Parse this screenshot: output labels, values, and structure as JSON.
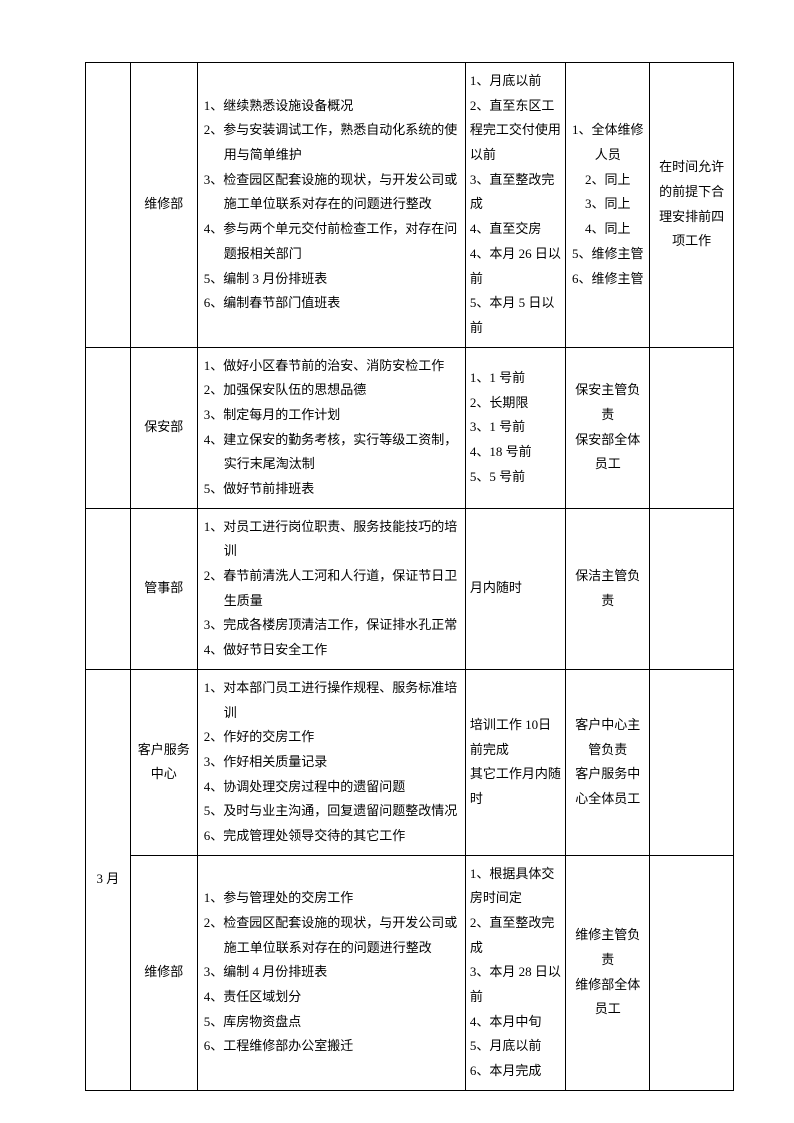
{
  "rows": [
    {
      "month": "",
      "dept": "维修部",
      "tasks": [
        {
          "n": "1、",
          "t": "继续熟悉设施设备概况"
        },
        {
          "n": "2、",
          "t": "参与安装调试工作，熟悉自动化系统的使用与简单维护"
        },
        {
          "n": "3、",
          "t": "检查园区配套设施的现状，与开发公司或施工单位联系对存在的问题进行整改"
        },
        {
          "n": "4、",
          "t": "参与两个单元交付前检查工作，对存在问题报相关部门"
        },
        {
          "n": "5、",
          "t": "编制 3 月份排班表"
        },
        {
          "n": "6、",
          "t": "编制春节部门值班表"
        }
      ],
      "deadline": "1、月底以前\n2、直至东区工程完工交付使用以前\n3、直至整改完成\n4、直至交房\n4、本月 26 日以前\n5、本月 5 日以前",
      "owner": "1、全体维修人员\n2、同上\n3、同上\n4、同上\n5、维修主管\n6、维修主管",
      "note": "在时间允许的前提下合理安排前四项工作"
    },
    {
      "month": "",
      "dept": "保安部",
      "tasks": [
        {
          "n": "1、",
          "t": "做好小区春节前的治安、消防安检工作"
        },
        {
          "n": "2、",
          "t": "加强保安队伍的思想品德"
        },
        {
          "n": "3、",
          "t": "制定每月的工作计划"
        },
        {
          "n": "4、",
          "t": "建立保安的勤务考核，实行等级工资制，实行末尾淘汰制"
        },
        {
          "n": "5、",
          "t": "做好节前排班表"
        }
      ],
      "deadline": "1、1 号前\n2、长期限\n3、1 号前\n4、18 号前\n5、5 号前",
      "owner": "保安主管负责\n保安部全体员工",
      "note": ""
    },
    {
      "month": "",
      "dept": "管事部",
      "tasks": [
        {
          "n": "1、",
          "t": "对员工进行岗位职责、服务技能技巧的培训"
        },
        {
          "n": "2、",
          "t": "春节前清洗人工河和人行道，保证节日卫生质量"
        },
        {
          "n": "3、",
          "t": "完成各楼房顶清洁工作，保证排水孔正常"
        },
        {
          "n": "4、",
          "t": "做好节日安全工作"
        }
      ],
      "deadline": "月内随时",
      "owner": "保洁主管负责",
      "note": ""
    },
    {
      "month": "3 月",
      "monthRowspan": 2,
      "dept": "客户服务中心",
      "tasks": [
        {
          "n": "1、",
          "t": "对本部门员工进行操作规程、服务标准培训"
        },
        {
          "n": "2、",
          "t": "作好的交房工作"
        },
        {
          "n": "3、",
          "t": "作好相关质量记录"
        },
        {
          "n": "4、",
          "t": "协调处理交房过程中的遗留问题"
        },
        {
          "n": "5、",
          "t": "及时与业主沟通，回复遗留问题整改情况"
        },
        {
          "n": "6、",
          "t": "完成管理处领导交待的其它工作"
        }
      ],
      "deadline": "培训工作 10日前完成\n其它工作月内随时",
      "owner": "客户中心主管负责\n客户服务中心全体员工",
      "note": ""
    },
    {
      "month": null,
      "dept": "维修部",
      "tasks": [
        {
          "n": "1、",
          "t": "参与管理处的交房工作"
        },
        {
          "n": "2、",
          "t": "检查园区配套设施的现状，与开发公司或施工单位联系对存在的问题进行整改"
        },
        {
          "n": "3、",
          "t": "编制 4 月份排班表"
        },
        {
          "n": "4、",
          "t": "责任区域划分"
        },
        {
          "n": "5、",
          "t": "库房物资盘点"
        },
        {
          "n": "6、",
          "t": "工程维修部办公室搬迁"
        }
      ],
      "deadline": "1、根据具体交房时间定\n2、直至整改完成\n3、本月 28 日以前\n4、本月中旬\n5、月底以前\n6、本月完成",
      "owner": "维修主管负责\n维修部全体员工",
      "note": ""
    }
  ]
}
